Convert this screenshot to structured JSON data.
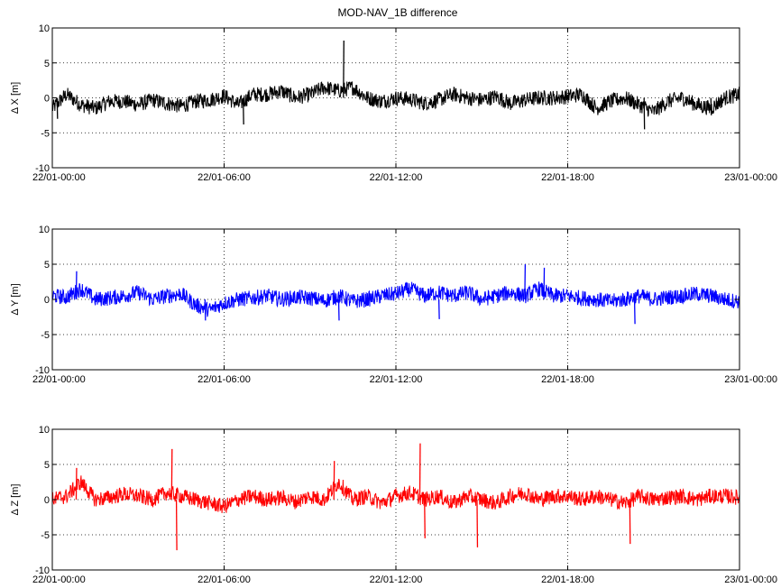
{
  "title": "MOD-NAV_1B difference",
  "chart_data": [
    {
      "type": "line",
      "ylabel": "Δ X [m]",
      "ylim": [
        -10,
        10
      ],
      "yticks": [
        -10,
        -5,
        0,
        5,
        10
      ],
      "x_range": [
        "22/01-00:00",
        "23/01-00:00"
      ],
      "xtick_labels": [
        "22/01-00:00",
        "22/01-06:00",
        "22/01-12:00",
        "22/01-18:00",
        "23/01-00:00"
      ],
      "grid": true,
      "series": [
        {
          "color": "#000000",
          "points": [
            [
              "22/01-00:00",
              -1.5
            ],
            [
              "22/01-00:30",
              0.5
            ],
            [
              "22/01-01:00",
              -1.0
            ],
            [
              "22/01-01:30",
              -1.5
            ],
            [
              "22/01-02:00",
              -0.5
            ],
            [
              "22/01-02:30",
              -0.5
            ],
            [
              "22/01-03:00",
              -1.0
            ],
            [
              "22/01-03:30",
              -0.3
            ],
            [
              "22/01-04:00",
              -0.8
            ],
            [
              "22/01-04:30",
              -1.2
            ],
            [
              "22/01-05:00",
              -0.5
            ],
            [
              "22/01-05:30",
              -0.3
            ],
            [
              "22/01-06:00",
              0.3
            ],
            [
              "22/01-06:30",
              -1.0
            ],
            [
              "22/01-07:00",
              0.5
            ],
            [
              "22/01-07:30",
              0.5
            ],
            [
              "22/01-08:00",
              1.0
            ],
            [
              "22/01-08:30",
              0.0
            ],
            [
              "22/01-09:00",
              0.5
            ],
            [
              "22/01-09:30",
              1.5
            ],
            [
              "22/01-10:00",
              1.0
            ],
            [
              "22/01-10:30",
              1.5
            ],
            [
              "22/01-11:00",
              0.0
            ],
            [
              "22/01-11:30",
              -0.5
            ],
            [
              "22/01-12:00",
              0.0
            ],
            [
              "22/01-12:30",
              -0.2
            ],
            [
              "22/01-13:00",
              -0.8
            ],
            [
              "22/01-13:30",
              -0.3
            ],
            [
              "22/01-14:00",
              0.5
            ],
            [
              "22/01-14:30",
              0.0
            ],
            [
              "22/01-15:00",
              -0.3
            ],
            [
              "22/01-15:30",
              0.2
            ],
            [
              "22/01-16:00",
              -0.8
            ],
            [
              "22/01-16:30",
              -0.3
            ],
            [
              "22/01-17:00",
              0.0
            ],
            [
              "22/01-17:30",
              0.0
            ],
            [
              "22/01-18:00",
              0.2
            ],
            [
              "22/01-18:30",
              0.5
            ],
            [
              "22/01-19:00",
              -1.5
            ],
            [
              "22/01-19:30",
              -0.5
            ],
            [
              "22/01-20:00",
              0.0
            ],
            [
              "22/01-20:30",
              -1.0
            ],
            [
              "22/01-21:00",
              -2.0
            ],
            [
              "22/01-21:30",
              -0.5
            ],
            [
              "22/01-22:00",
              0.0
            ],
            [
              "22/01-22:30",
              -1.0
            ],
            [
              "22/01-23:00",
              -1.5
            ],
            [
              "22/01-23:30",
              0.0
            ],
            [
              "23/01-00:00",
              0.5
            ]
          ],
          "spikes": [
            [
              "22/01-00:10",
              -3.0
            ],
            [
              "22/01-06:40",
              -3.8
            ],
            [
              "22/01-10:10",
              8.2
            ],
            [
              "22/01-20:40",
              -4.5
            ],
            [
              "22/01-23:00",
              -2.5
            ]
          ]
        }
      ]
    },
    {
      "type": "line",
      "ylabel": "Δ Y [m]",
      "ylim": [
        -10,
        10
      ],
      "yticks": [
        -10,
        -5,
        0,
        5,
        10
      ],
      "x_range": [
        "22/01-00:00",
        "23/01-00:00"
      ],
      "xtick_labels": [
        "22/01-00:00",
        "22/01-06:00",
        "22/01-12:00",
        "22/01-18:00",
        "23/01-00:00"
      ],
      "grid": true,
      "series": [
        {
          "color": "#0000ff",
          "points": [
            [
              "22/01-00:00",
              0.5
            ],
            [
              "22/01-00:30",
              0.3
            ],
            [
              "22/01-01:00",
              1.5
            ],
            [
              "22/01-01:30",
              0.0
            ],
            [
              "22/01-02:00",
              0.2
            ],
            [
              "22/01-02:30",
              0.5
            ],
            [
              "22/01-03:00",
              1.0
            ],
            [
              "22/01-03:30",
              0.0
            ],
            [
              "22/01-04:00",
              0.5
            ],
            [
              "22/01-04:30",
              0.8
            ],
            [
              "22/01-05:00",
              -0.8
            ],
            [
              "22/01-05:30",
              -1.5
            ],
            [
              "22/01-06:00",
              -0.5
            ],
            [
              "22/01-06:30",
              0.0
            ],
            [
              "22/01-07:00",
              0.2
            ],
            [
              "22/01-07:30",
              0.5
            ],
            [
              "22/01-08:00",
              0.0
            ],
            [
              "22/01-08:30",
              0.3
            ],
            [
              "22/01-09:00",
              0.2
            ],
            [
              "22/01-09:30",
              -0.2
            ],
            [
              "22/01-10:00",
              0.5
            ],
            [
              "22/01-10:30",
              -0.3
            ],
            [
              "22/01-11:00",
              0.0
            ],
            [
              "22/01-11:30",
              0.5
            ],
            [
              "22/01-12:00",
              0.8
            ],
            [
              "22/01-12:30",
              1.5
            ],
            [
              "22/01-13:00",
              0.5
            ],
            [
              "22/01-13:30",
              1.0
            ],
            [
              "22/01-14:00",
              0.5
            ],
            [
              "22/01-14:30",
              1.0
            ],
            [
              "22/01-15:00",
              0.0
            ],
            [
              "22/01-15:30",
              0.5
            ],
            [
              "22/01-16:00",
              1.0
            ],
            [
              "22/01-16:30",
              0.5
            ],
            [
              "22/01-17:00",
              1.5
            ],
            [
              "22/01-17:30",
              0.5
            ],
            [
              "22/01-18:00",
              0.5
            ],
            [
              "22/01-18:30",
              0.2
            ],
            [
              "22/01-19:00",
              0.0
            ],
            [
              "22/01-19:30",
              -0.3
            ],
            [
              "22/01-20:00",
              0.0
            ],
            [
              "22/01-20:30",
              0.5
            ],
            [
              "22/01-21:00",
              0.0
            ],
            [
              "22/01-21:30",
              0.3
            ],
            [
              "22/01-22:00",
              0.5
            ],
            [
              "22/01-22:30",
              0.8
            ],
            [
              "22/01-23:00",
              0.5
            ],
            [
              "22/01-23:30",
              0.0
            ],
            [
              "23/01-00:00",
              -0.3
            ]
          ],
          "spikes": [
            [
              "22/01-00:50",
              4.0
            ],
            [
              "22/01-05:20",
              -3.0
            ],
            [
              "22/01-10:00",
              -3.0
            ],
            [
              "22/01-13:30",
              -2.8
            ],
            [
              "22/01-16:30",
              5.0
            ],
            [
              "22/01-17:10",
              4.5
            ],
            [
              "22/01-20:20",
              -3.5
            ]
          ]
        }
      ]
    },
    {
      "type": "line",
      "ylabel": "Δ Z [m]",
      "ylim": [
        -10,
        10
      ],
      "yticks": [
        -10,
        -5,
        0,
        5,
        10
      ],
      "x_range": [
        "22/01-00:00",
        "23/01-00:00"
      ],
      "xtick_labels": [
        "22/01-00:00",
        "22/01-06:00",
        "22/01-12:00",
        "22/01-18:00",
        "23/01-00:00"
      ],
      "grid": true,
      "series": [
        {
          "color": "#ff0000",
          "points": [
            [
              "22/01-00:00",
              0.0
            ],
            [
              "22/01-00:30",
              0.5
            ],
            [
              "22/01-01:00",
              2.5
            ],
            [
              "22/01-01:30",
              0.0
            ],
            [
              "22/01-02:00",
              0.3
            ],
            [
              "22/01-02:30",
              0.8
            ],
            [
              "22/01-03:00",
              0.5
            ],
            [
              "22/01-03:30",
              0.0
            ],
            [
              "22/01-04:00",
              1.0
            ],
            [
              "22/01-04:30",
              0.5
            ],
            [
              "22/01-05:00",
              0.0
            ],
            [
              "22/01-05:30",
              -0.5
            ],
            [
              "22/01-06:00",
              -1.0
            ],
            [
              "22/01-06:30",
              0.0
            ],
            [
              "22/01-07:00",
              0.5
            ],
            [
              "22/01-07:30",
              0.0
            ],
            [
              "22/01-08:00",
              0.3
            ],
            [
              "22/01-08:30",
              -0.3
            ],
            [
              "22/01-09:00",
              0.5
            ],
            [
              "22/01-09:30",
              0.0
            ],
            [
              "22/01-10:00",
              2.5
            ],
            [
              "22/01-10:30",
              0.0
            ],
            [
              "22/01-11:00",
              0.5
            ],
            [
              "22/01-11:30",
              -0.5
            ],
            [
              "22/01-12:00",
              0.5
            ],
            [
              "22/01-12:30",
              1.0
            ],
            [
              "22/01-13:00",
              0.0
            ],
            [
              "22/01-13:30",
              0.5
            ],
            [
              "22/01-14:00",
              -0.5
            ],
            [
              "22/01-14:30",
              0.5
            ],
            [
              "22/01-15:00",
              0.0
            ],
            [
              "22/01-15:30",
              -0.5
            ],
            [
              "22/01-16:00",
              0.5
            ],
            [
              "22/01-16:30",
              1.0
            ],
            [
              "22/01-17:00",
              0.0
            ],
            [
              "22/01-17:30",
              0.5
            ],
            [
              "22/01-18:00",
              0.5
            ],
            [
              "22/01-18:30",
              0.0
            ],
            [
              "22/01-19:00",
              0.5
            ],
            [
              "22/01-19:30",
              0.0
            ],
            [
              "22/01-20:00",
              -0.5
            ],
            [
              "22/01-20:30",
              0.5
            ],
            [
              "22/01-21:00",
              0.0
            ],
            [
              "22/01-21:30",
              0.3
            ],
            [
              "22/01-22:00",
              0.5
            ],
            [
              "22/01-22:30",
              0.0
            ],
            [
              "22/01-23:00",
              0.5
            ],
            [
              "22/01-23:30",
              0.5
            ],
            [
              "23/01-00:00",
              0.3
            ]
          ],
          "spikes": [
            [
              "22/01-00:50",
              4.5
            ],
            [
              "22/01-04:10",
              7.2
            ],
            [
              "22/01-04:20",
              -7.2
            ],
            [
              "22/01-09:50",
              5.5
            ],
            [
              "22/01-12:50",
              8.0
            ],
            [
              "22/01-13:00",
              -5.5
            ],
            [
              "22/01-14:50",
              -6.8
            ],
            [
              "22/01-20:10",
              -6.3
            ]
          ]
        }
      ]
    }
  ]
}
